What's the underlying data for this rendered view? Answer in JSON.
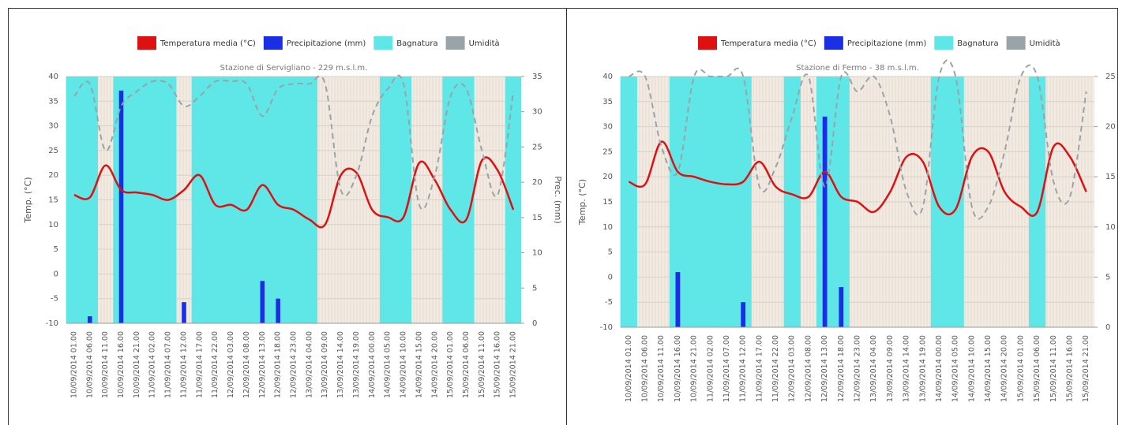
{
  "chart_data": [
    {
      "type": "combo",
      "subtitle": "Stazione di Servigliano - 229 m.s.l.m.",
      "y_label": "Temp. (°C)",
      "y2_label": "Prec. (mm)",
      "categories": [
        "10/09/2014 01.00",
        "10/09/2014 06.00",
        "10/09/2014 11.00",
        "10/09/2014 16.00",
        "10/09/2014 21.00",
        "11/09/2014 02.00",
        "11/09/2014 07.00",
        "11/09/2014 12.00",
        "11/09/2014 17.00",
        "11/09/2014 22.00",
        "12/09/2014 03.00",
        "12/09/2014 08.00",
        "12/09/2014 13.00",
        "12/09/2014 18.00",
        "12/09/2014 23.00",
        "13/09/2014 04.00",
        "13/09/2014 09.00",
        "13/09/2014 14.00",
        "13/09/2014 19.00",
        "14/09/2014 00.00",
        "14/09/2014 05.00",
        "14/09/2014 10.00",
        "14/09/2014 15.00",
        "14/09/2014 20.00",
        "15/09/2014 01.00",
        "15/09/2014 06.00",
        "15/09/2014 11.00",
        "15/09/2014 16.00",
        "15/09/2014 21.00"
      ],
      "ylim": [
        -10,
        40
      ],
      "yticks": [
        -10,
        -5,
        0,
        5,
        10,
        15,
        20,
        25,
        30,
        35,
        40
      ],
      "y2lim": [
        0,
        35
      ],
      "y2ticks": [
        0,
        5,
        10,
        15,
        20,
        25,
        30,
        35
      ],
      "grid": true,
      "series": [
        {
          "name": "Temperatura media (°C)",
          "color": "#dd1111",
          "kind": "line",
          "values": [
            16,
            15.5,
            22,
            17,
            16.5,
            16,
            15,
            17,
            20,
            14,
            14,
            13,
            18,
            14,
            13,
            11,
            10,
            20,
            20.5,
            13,
            11.5,
            11.5,
            22.5,
            19,
            13,
            11,
            23,
            21,
            13
          ]
        },
        {
          "name": "Precipitazione (mm)",
          "color": "#1a2ee6",
          "kind": "bar",
          "axis": "y2",
          "values": [
            0,
            1,
            0,
            33,
            0,
            0,
            0,
            3,
            0,
            0,
            0,
            0,
            6,
            3.5,
            0,
            0,
            0,
            0,
            0,
            0,
            0,
            0,
            0,
            0,
            0,
            0,
            0,
            0,
            0
          ]
        },
        {
          "name": "Bagnatura",
          "color": "#5fe6e6",
          "kind": "area-bar",
          "axis": "y2",
          "values": [
            35,
            35,
            0,
            35,
            35,
            35,
            35,
            0,
            35,
            35,
            35,
            35,
            35,
            35,
            35,
            35,
            0,
            0,
            0,
            0,
            35,
            35,
            0,
            0,
            35,
            35,
            0,
            0,
            35
          ]
        },
        {
          "name": "Umidità",
          "color": "#9aa3a8",
          "kind": "line",
          "dashed": true,
          "values": [
            36,
            38.5,
            25,
            34,
            37,
            39,
            38.5,
            34,
            36,
            39,
            39,
            38.5,
            32,
            37.5,
            38.5,
            38.5,
            38.5,
            17,
            20,
            32,
            37.5,
            38.5,
            14,
            20,
            36,
            37.5,
            25,
            16,
            37
          ]
        }
      ]
    },
    {
      "type": "combo",
      "subtitle": "Stazione di Fermo - 38 m.s.l.m.",
      "y_label": "Temp. (°C)",
      "y2_label": "Prec. (mm)",
      "categories": [
        "10/09/2014 01.00",
        "10/09/2014 06.00",
        "10/09/2014 11.00",
        "10/09/2014 16.00",
        "10/09/2014 21.00",
        "11/09/2014 02.00",
        "11/09/2014 07.00",
        "11/09/2014 12.00",
        "11/09/2014 17.00",
        "11/09/2014 22.00",
        "12/09/2014 03.00",
        "12/09/2014 08.00",
        "12/09/2014 13.00",
        "12/09/2014 18.00",
        "12/09/2014 23.00",
        "13/09/2014 04.00",
        "13/09/2014 09.00",
        "13/09/2014 14.00",
        "13/09/2014 19.00",
        "14/09/2014 00.00",
        "14/09/2014 05.00",
        "14/09/2014 10.00",
        "14/09/2014 15.00",
        "14/09/2014 20.00",
        "15/09/2014 01.00",
        "15/09/2014 06.00",
        "15/09/2014 11.00",
        "15/09/2014 16.00",
        "15/09/2014 21.00"
      ],
      "ylim": [
        -10,
        40
      ],
      "yticks": [
        -10,
        -5,
        0,
        5,
        10,
        15,
        20,
        25,
        30,
        35,
        40
      ],
      "y2lim": [
        0,
        25
      ],
      "y2ticks": [
        0,
        5,
        10,
        15,
        20,
        25
      ],
      "grid": true,
      "series": [
        {
          "name": "Temperatura media (°C)",
          "color": "#dd1111",
          "kind": "line",
          "values": [
            19,
            18.5,
            27,
            21,
            20,
            19,
            18.5,
            19,
            23,
            18,
            16.5,
            16,
            21,
            16,
            15,
            13,
            17,
            24,
            23,
            14,
            13.5,
            24,
            25,
            17,
            14,
            13,
            26,
            24,
            17
          ]
        },
        {
          "name": "Precipitazione (mm)",
          "color": "#1a2ee6",
          "kind": "bar",
          "axis": "y2",
          "values": [
            0,
            0,
            0,
            5.5,
            0,
            0,
            0,
            2.5,
            0,
            0,
            0,
            0,
            21,
            4,
            0,
            0,
            0,
            0,
            0,
            0,
            0,
            0,
            0,
            0,
            0,
            0,
            0,
            0,
            0
          ]
        },
        {
          "name": "Bagnatura",
          "color": "#5fe6e6",
          "kind": "area-bar",
          "axis": "y2",
          "values": [
            25,
            0,
            0,
            25,
            25,
            25,
            25,
            25,
            0,
            0,
            25,
            0,
            25,
            25,
            0,
            0,
            0,
            0,
            0,
            25,
            25,
            0,
            0,
            0,
            0,
            25,
            0,
            0,
            0
          ]
        },
        {
          "name": "Umidità",
          "color": "#9aa3a8",
          "kind": "line",
          "dashed": true,
          "values": [
            40,
            40,
            26,
            21,
            40,
            40,
            40,
            40,
            18,
            22,
            32,
            40,
            18,
            40,
            37,
            40,
            32,
            17,
            14,
            40,
            40,
            14,
            14,
            25,
            40,
            40,
            19,
            16,
            37
          ]
        }
      ]
    }
  ]
}
